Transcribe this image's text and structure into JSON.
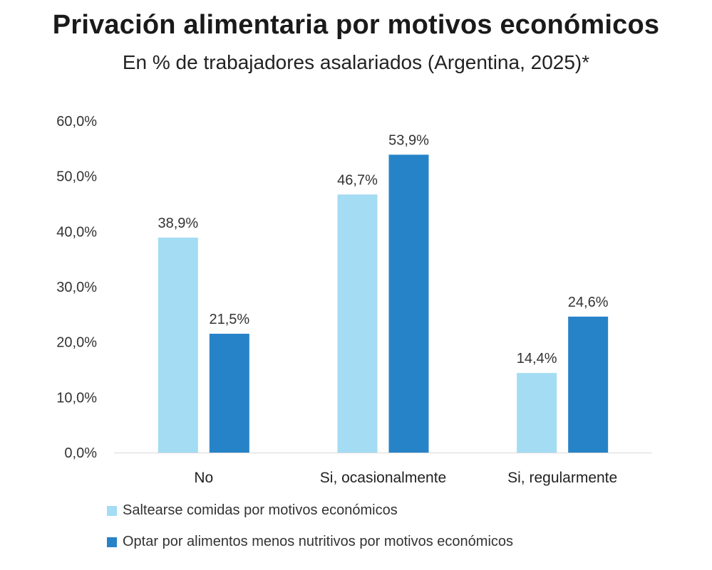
{
  "chart_data": {
    "type": "bar",
    "title": "Privación alimentaria por motivos económicos",
    "subtitle": "En % de trabajadores asalariados (Argentina, 2025)*",
    "categories": [
      "No",
      "Si, ocasionalmente",
      "Si, regularmente"
    ],
    "series": [
      {
        "name": "Saltearse comidas por motivos económicos",
        "color": "#a3dcf3",
        "values": [
          38.9,
          46.7,
          14.4
        ],
        "labels": [
          "38,9%",
          "46,7%",
          "14,4%"
        ]
      },
      {
        "name": "Optar por alimentos menos nutritivos por motivos económicos",
        "color": "#2783c8",
        "values": [
          21.5,
          53.9,
          24.6
        ],
        "labels": [
          "21,5%",
          "53,9%",
          "24,6%"
        ]
      }
    ],
    "ylim": [
      0,
      60
    ],
    "yticks": [
      0,
      10,
      20,
      30,
      40,
      50,
      60
    ],
    "ytick_labels": [
      "0,0%",
      "10,0%",
      "20,0%",
      "30,0%",
      "40,0%",
      "50,0%",
      "60,0%"
    ],
    "grid": false,
    "legend_position": "bottom-left"
  }
}
